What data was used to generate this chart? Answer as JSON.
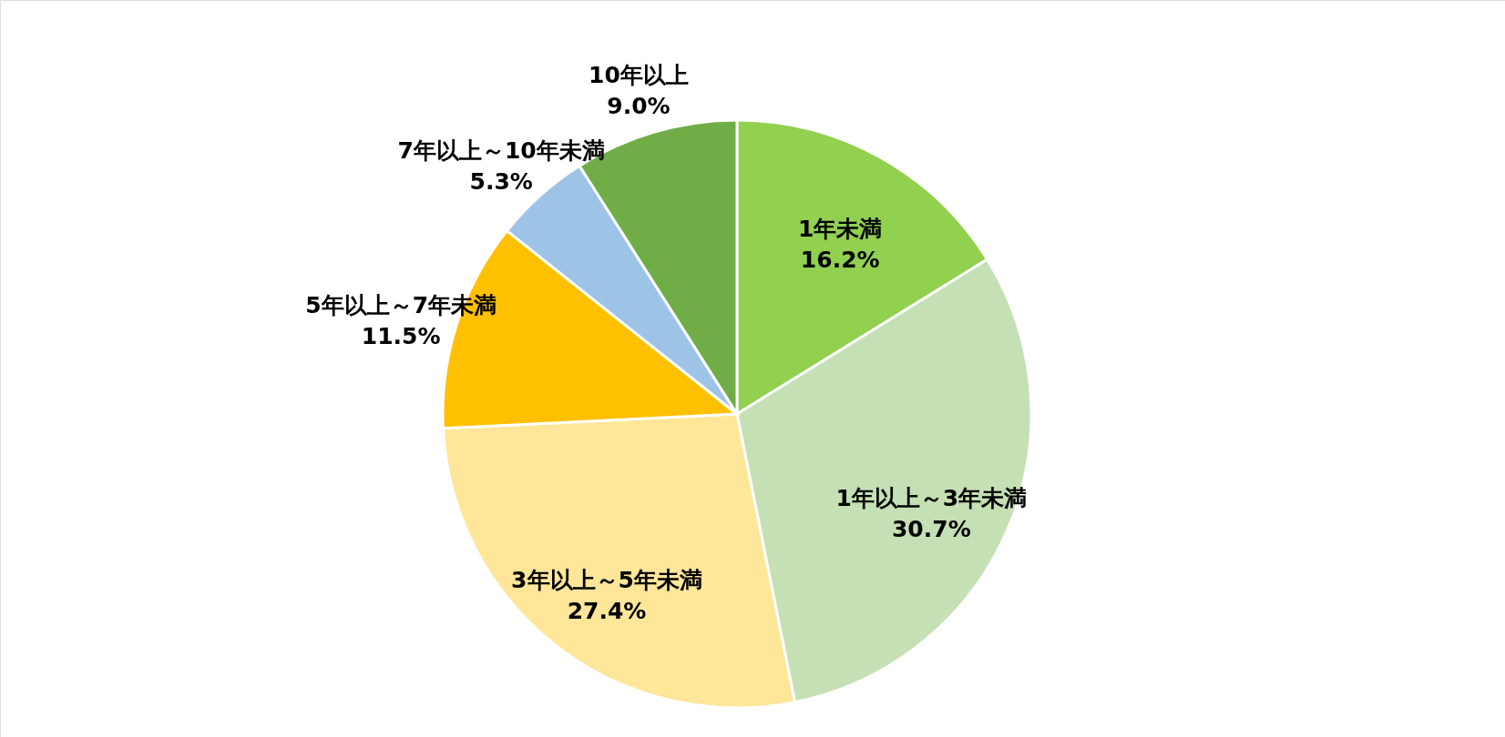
{
  "chart_data": {
    "type": "pie",
    "categories": [
      "1年未満",
      "1年以上～3年未満",
      "3年以上～5年未満",
      "5年以上～7年未満",
      "7年以上～10年未満",
      "10年以上"
    ],
    "values": [
      16.2,
      30.7,
      27.4,
      11.5,
      5.3,
      9.0
    ],
    "value_labels": [
      "16.2%",
      "30.7%",
      "27.4%",
      "11.5%",
      "5.3%",
      "9.0%"
    ],
    "colors": [
      "#92d050",
      "#c5e0b4",
      "#ffe699",
      "#ffc000",
      "#9dc3e6",
      "#70ad47"
    ]
  }
}
